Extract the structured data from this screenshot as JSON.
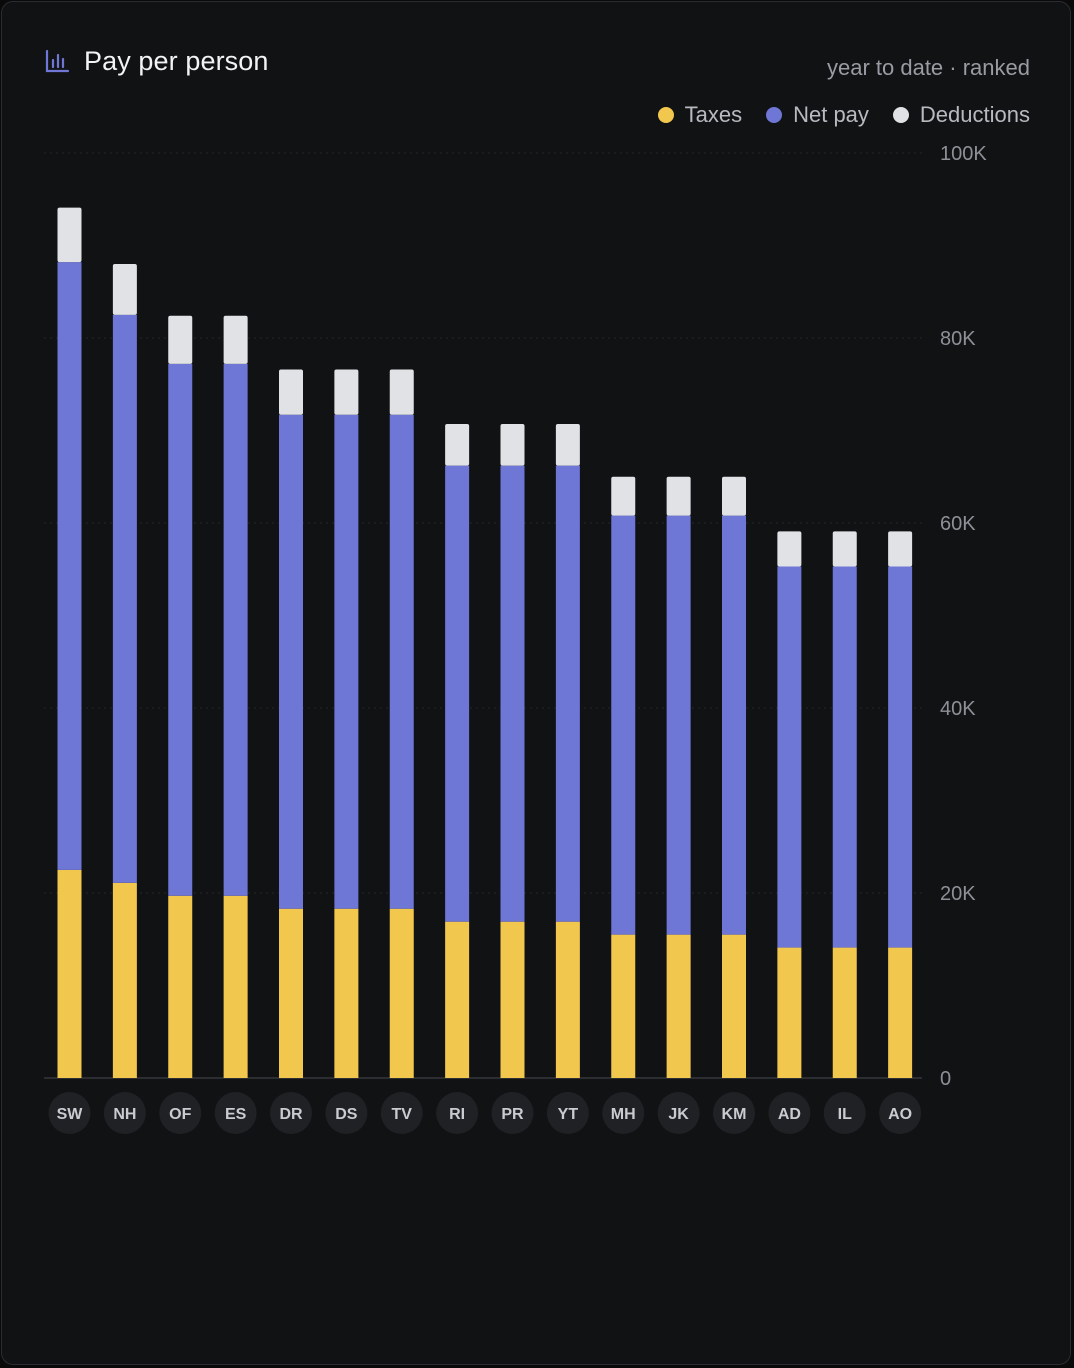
{
  "header": {
    "title": "Pay per person",
    "subtitle": "year to date · ranked",
    "icon": "bar-chart-icon"
  },
  "legend": {
    "items": [
      {
        "label": "Taxes",
        "color": "#f2c74e"
      },
      {
        "label": "Net pay",
        "color": "#6e76d6"
      },
      {
        "label": "Deductions",
        "color": "#e1e2e5"
      }
    ]
  },
  "chart_data": {
    "type": "bar",
    "stacked": true,
    "categories": [
      "SW",
      "NH",
      "OF",
      "ES",
      "DR",
      "DS",
      "TV",
      "RI",
      "PR",
      "YT",
      "MH",
      "JK",
      "KM",
      "AD",
      "IL",
      "AO"
    ],
    "series": [
      {
        "name": "Taxes",
        "color": "#f2c74e",
        "values": [
          22500,
          21100,
          19700,
          19700,
          18300,
          18300,
          18300,
          16900,
          16900,
          16900,
          15500,
          15500,
          15500,
          14100,
          14100,
          14100
        ]
      },
      {
        "name": "Net pay",
        "color": "#6e76d6",
        "values": [
          65700,
          61400,
          57500,
          57500,
          53400,
          53400,
          53400,
          49300,
          49300,
          49300,
          45300,
          45300,
          45300,
          41200,
          41200,
          41200
        ]
      },
      {
        "name": "Deductions",
        "color": "#e1e2e5",
        "values": [
          5900,
          5500,
          5200,
          5200,
          4900,
          4900,
          4900,
          4500,
          4500,
          4500,
          4200,
          4200,
          4200,
          3800,
          3800,
          3800
        ]
      }
    ],
    "yticks": [
      "0",
      "20K",
      "40K",
      "60K",
      "80K",
      "100K"
    ],
    "ylim": [
      0,
      100000
    ],
    "grid": true,
    "legend_position": "top-right"
  }
}
